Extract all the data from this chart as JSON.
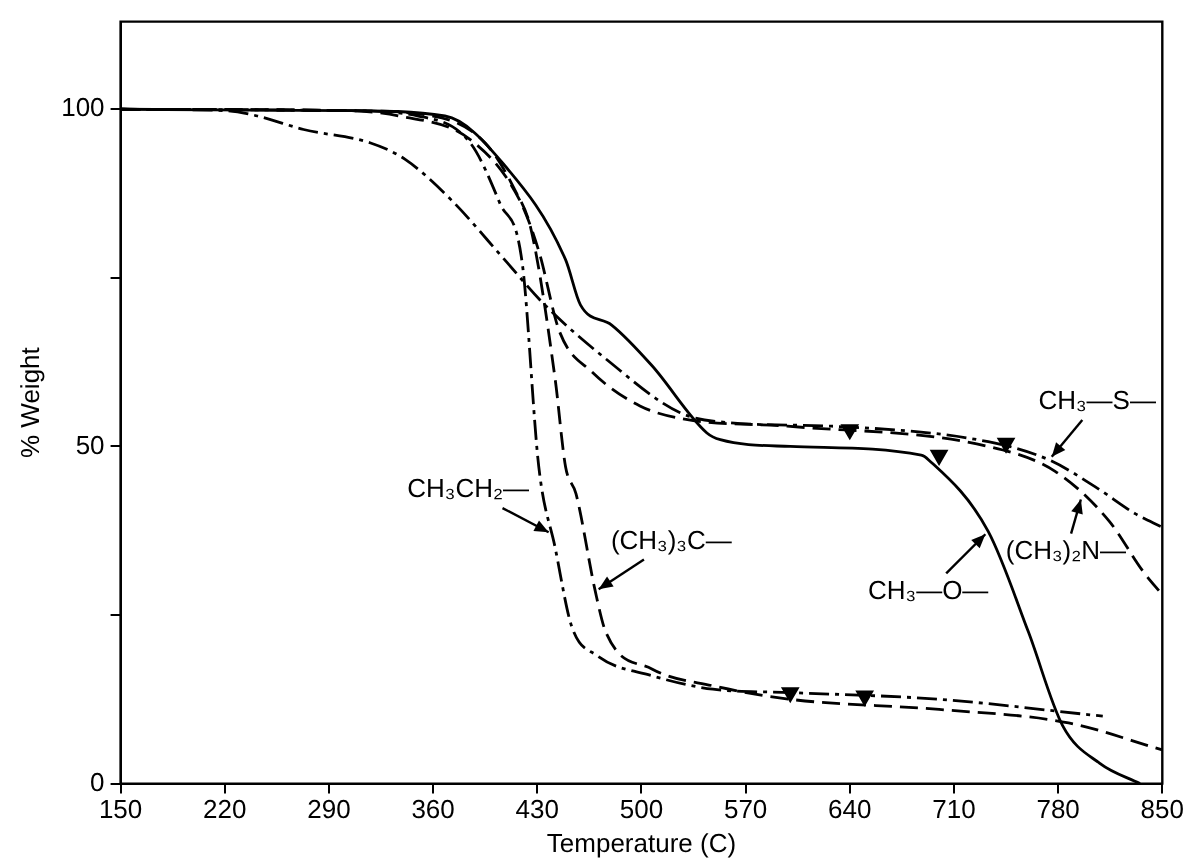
{
  "chart_data": {
    "type": "line",
    "xlabel": "Temperature (C)",
    "ylabel": "% Weight",
    "xlim": [
      150,
      850
    ],
    "xticks": [
      150,
      220,
      290,
      360,
      430,
      500,
      570,
      640,
      710,
      780,
      850
    ],
    "ylim": [
      0,
      113
    ],
    "yticks": [
      0,
      {
        "value": 25,
        "label": null
      },
      50,
      {
        "value": 75,
        "label": null
      },
      100
    ],
    "grid": false,
    "legend": false,
    "marker": "none",
    "series": [
      {
        "color": "#000000",
        "line_style": "solid",
        "x": [
          150,
          300,
          368,
          408,
          449,
          459,
          480,
          507,
          544,
          553,
          600,
          688,
          693,
          733,
          760,
          783,
          808,
          835
        ],
        "values": [
          100,
          99.8,
          99,
          91.7,
          77.7,
          71,
          68,
          62,
          52,
          51,
          50,
          48.7,
          48,
          37.4,
          22.5,
          8.6,
          3,
          0
        ]
      },
      {
        "color": "#000000",
        "line_style": "dashdot",
        "x": [
          150,
          220,
          242,
          273,
          318,
          341,
          372,
          408,
          435,
          476,
          526,
          560,
          628,
          733,
          774,
          805,
          832,
          850
        ],
        "values": [
          100,
          99.8,
          99,
          97,
          95,
          92.6,
          86.6,
          77.7,
          71,
          63,
          55,
          53.5,
          53,
          50.7,
          48,
          44,
          40,
          38
        ]
      },
      {
        "color": "#000000",
        "line_style": "dashed",
        "x": [
          150,
          300,
          337,
          385,
          418,
          431,
          445,
          467,
          499,
          530,
          598,
          733,
          778,
          814,
          837,
          850
        ],
        "values": [
          100,
          99.8,
          99,
          95.5,
          86.6,
          79,
          67,
          61,
          56,
          54,
          53,
          50,
          46.3,
          39,
          31.5,
          28
        ]
      },
      {
        "color": "#000000",
        "line_style": "dashdot",
        "x": [
          150,
          300,
          350,
          385,
          405,
          420,
          431,
          442,
          453,
          470,
          507,
          548,
          600,
          700,
          810
        ],
        "values": [
          100,
          99.8,
          99,
          95,
          86,
          77,
          47,
          35,
          23.4,
          19,
          16,
          14,
          13.5,
          12.5,
          10
        ]
      },
      {
        "color": "#000000",
        "line_style": "dashed",
        "x": [
          150,
          300,
          360,
          395,
          415,
          426,
          442,
          449,
          456,
          469,
          476,
          507,
          548,
          600,
          700,
          787,
          850
        ],
        "values": [
          100,
          99.8,
          99,
          95,
          88,
          82,
          60,
          47,
          43,
          28.5,
          22.5,
          17,
          14.5,
          12.5,
          11,
          9,
          5
        ]
      },
      {
        "type": "scatter",
        "color": "#000000",
        "marker": "triangle",
        "x": [
          640,
          745,
          700,
          600,
          650
        ],
        "values": [
          52.5,
          50.5,
          48.7,
          13.5,
          13
        ]
      }
    ],
    "annotations": [
      {
        "text": "CH₃—O—",
        "x": 733,
        "y": 37.4
      },
      {
        "text": "CH₃—S—",
        "x": 774,
        "y": 48
      },
      {
        "text": "(CH₃)₂N—",
        "x": 796,
        "y": 42.7
      },
      {
        "text": "CH₃CH₂—",
        "x": 440,
        "y": 37
      },
      {
        "text": "(CH₃)₃C—",
        "x": 469,
        "y": 28.5
      }
    ]
  }
}
